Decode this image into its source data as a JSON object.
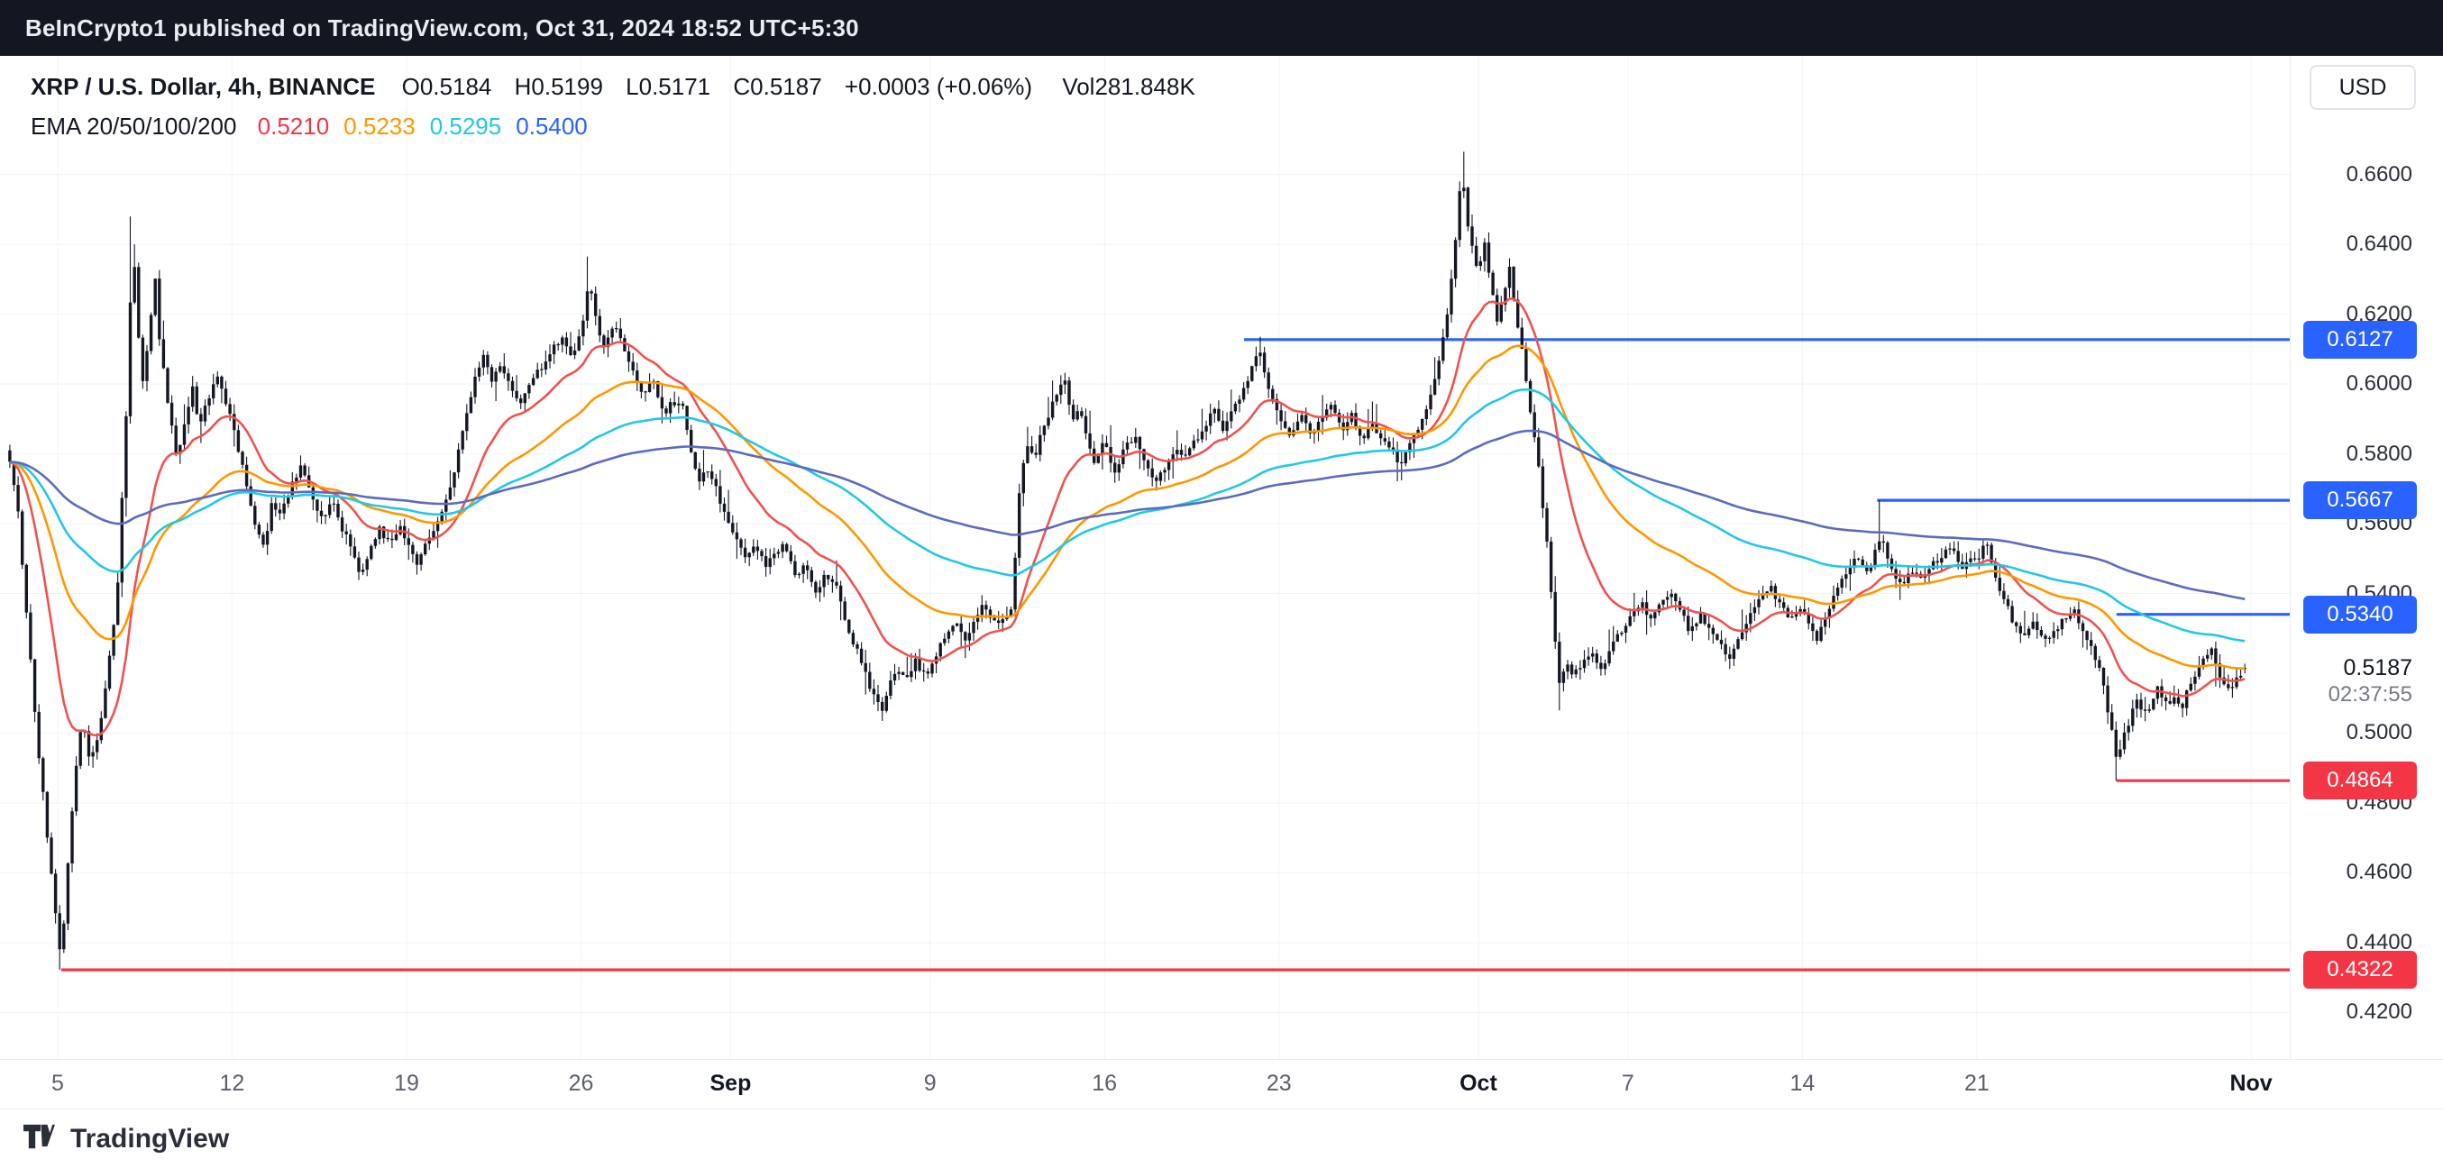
{
  "publish_bar": {
    "text": "BeInCrypto1 published on TradingView.com, Oct 31, 2024 18:52 UTC+5:30"
  },
  "header": {
    "title": "XRP / U.S. Dollar, 4h, BINANCE",
    "ohlc": {
      "open": "O0.5184",
      "high": "H0.5199",
      "low": "L0.5171",
      "close": "C0.5187",
      "change": "+0.0003 (+0.06%)",
      "volume": "Vol281.848K"
    },
    "ema": {
      "label": "EMA 20/50/100/200",
      "values": [
        {
          "text": "0.5210",
          "color": "#F23645"
        },
        {
          "text": "0.5233",
          "color": "#FF9800"
        },
        {
          "text": "0.5295",
          "color": "#22C8E5"
        },
        {
          "text": "0.5400",
          "color": "#2962FF"
        }
      ]
    }
  },
  "currency_button": "USD",
  "colors": {
    "accent_blue": "#2962FF",
    "accent_red": "#F23645",
    "topbar_bg": "#131722",
    "candle": "#131722"
  },
  "price_axis": {
    "ticks": [
      {
        "label": "0.6600",
        "price": 0.66
      },
      {
        "label": "0.6400",
        "price": 0.64
      },
      {
        "label": "0.6200",
        "price": 0.62
      },
      {
        "label": "0.6000",
        "price": 0.6
      },
      {
        "label": "0.5800",
        "price": 0.58
      },
      {
        "label": "0.5600",
        "price": 0.56
      },
      {
        "label": "0.5400",
        "price": 0.54
      },
      {
        "label": "0.5000",
        "price": 0.5
      },
      {
        "label": "0.4800",
        "price": 0.48
      },
      {
        "label": "0.4600",
        "price": 0.46
      },
      {
        "label": "0.4400",
        "price": 0.44
      },
      {
        "label": "0.4200",
        "price": 0.42
      }
    ],
    "current": {
      "label": "0.5187",
      "price": 0.5187,
      "countdown": "02:37:55"
    }
  },
  "time_axis": {
    "ticks": [
      {
        "label": "5",
        "t": 2
      },
      {
        "label": "12",
        "t": 9
      },
      {
        "label": "19",
        "t": 16
      },
      {
        "label": "26",
        "t": 23
      },
      {
        "label": "Sep",
        "t": 29,
        "bold": true
      },
      {
        "label": "9",
        "t": 37
      },
      {
        "label": "16",
        "t": 44
      },
      {
        "label": "23",
        "t": 51
      },
      {
        "label": "Oct",
        "t": 59,
        "bold": true
      },
      {
        "label": "7",
        "t": 65
      },
      {
        "label": "14",
        "t": 72
      },
      {
        "label": "21",
        "t": 79
      },
      {
        "label": "Nov",
        "t": 90,
        "bold": true
      }
    ]
  },
  "footer": {
    "brand": "TradingView"
  },
  "chart_data": {
    "type": "candlestick",
    "symbol": "XRP/USD",
    "interval": "4h",
    "exchange": "BINANCE",
    "title": "XRP / U.S. Dollar, 4h, BINANCE",
    "ylim": [
      0.4067,
      0.694
    ],
    "x_days_range": [
      0,
      89.8
    ],
    "x_axis_note": "t = days since Aug 3 2024; ticks at Aug 5..Nov 1",
    "grid": "faint",
    "candle_color": "#131722",
    "candles_per_day": 6,
    "noise": {
      "seed": 11,
      "body": 0.0022,
      "wick": 0.003
    },
    "last_candle": {
      "open": 0.5184,
      "high": 0.5199,
      "low": 0.5171,
      "close": 0.5187
    },
    "ema_overlays": [
      {
        "period": 20,
        "color": "#EF5350"
      },
      {
        "period": 50,
        "color": "#FF9800"
      },
      {
        "period": 100,
        "color": "#22C8E5"
      },
      {
        "period": 200,
        "color": "#5C6BC0"
      }
    ],
    "horizontal_lines": [
      {
        "label": "0.6127",
        "price": 0.6127,
        "t_start": 49.6,
        "color": "#2962FF"
      },
      {
        "label": "0.5667",
        "price": 0.5667,
        "t_start": 75.0,
        "color": "#2962FF"
      },
      {
        "label": "0.5340",
        "price": 0.534,
        "t_start": 84.6,
        "color": "#2962FF"
      },
      {
        "label": "0.4864",
        "price": 0.4864,
        "t_start": 84.6,
        "color": "#F23645"
      },
      {
        "label": "0.4322",
        "price": 0.4322,
        "t_start": 2.15,
        "color": "#F23645"
      }
    ],
    "anchors": [
      {
        "t": 2.15,
        "price": 0.4322,
        "kind": "low"
      },
      {
        "t": 5.0,
        "price": 0.648,
        "kind": "high"
      },
      {
        "t": 23.3,
        "price": 0.6365,
        "kind": "high"
      },
      {
        "t": 35.1,
        "price": 0.5035,
        "kind": "low"
      },
      {
        "t": 50.25,
        "price": 0.6127,
        "kind": "high"
      },
      {
        "t": 58.35,
        "price": 0.6665,
        "kind": "high"
      },
      {
        "t": 62.25,
        "price": 0.5065,
        "kind": "low"
      },
      {
        "t": 75.15,
        "price": 0.5667,
        "kind": "high"
      },
      {
        "t": 84.6,
        "price": 0.4864,
        "kind": "low"
      }
    ],
    "price_path": [
      [
        0,
        0.581
      ],
      [
        0.4,
        0.565
      ],
      [
        0.8,
        0.53
      ],
      [
        1.2,
        0.497
      ],
      [
        1.6,
        0.47
      ],
      [
        2.0,
        0.444
      ],
      [
        2.15,
        0.4335
      ],
      [
        2.4,
        0.462
      ],
      [
        2.7,
        0.488
      ],
      [
        3.0,
        0.505
      ],
      [
        3.3,
        0.492
      ],
      [
        3.6,
        0.498
      ],
      [
        4.0,
        0.517
      ],
      [
        4.4,
        0.54
      ],
      [
        4.8,
        0.598
      ],
      [
        5.0,
        0.643
      ],
      [
        5.2,
        0.618
      ],
      [
        5.4,
        0.6
      ],
      [
        5.7,
        0.616
      ],
      [
        5.9,
        0.6315
      ],
      [
        6.1,
        0.612
      ],
      [
        6.4,
        0.596
      ],
      [
        6.8,
        0.578
      ],
      [
        7.1,
        0.589
      ],
      [
        7.4,
        0.599
      ],
      [
        7.7,
        0.588
      ],
      [
        8.0,
        0.595
      ],
      [
        8.4,
        0.603
      ],
      [
        8.8,
        0.594
      ],
      [
        9.2,
        0.583
      ],
      [
        9.6,
        0.57
      ],
      [
        10.0,
        0.558
      ],
      [
        10.3,
        0.552
      ],
      [
        10.6,
        0.566
      ],
      [
        11.0,
        0.563
      ],
      [
        11.4,
        0.572
      ],
      [
        11.8,
        0.577
      ],
      [
        12.2,
        0.569
      ],
      [
        12.6,
        0.561
      ],
      [
        13.0,
        0.567
      ],
      [
        13.4,
        0.559
      ],
      [
        13.8,
        0.553
      ],
      [
        14.1,
        0.546
      ],
      [
        14.5,
        0.551
      ],
      [
        14.9,
        0.559
      ],
      [
        15.3,
        0.554
      ],
      [
        15.7,
        0.559
      ],
      [
        16.0,
        0.556
      ],
      [
        16.4,
        0.549
      ],
      [
        16.8,
        0.554
      ],
      [
        17.2,
        0.56
      ],
      [
        17.6,
        0.567
      ],
      [
        18.0,
        0.578
      ],
      [
        18.4,
        0.592
      ],
      [
        18.8,
        0.603
      ],
      [
        19.1,
        0.609
      ],
      [
        19.4,
        0.601
      ],
      [
        19.8,
        0.606
      ],
      [
        20.2,
        0.598
      ],
      [
        20.6,
        0.594
      ],
      [
        21.0,
        0.601
      ],
      [
        21.4,
        0.605
      ],
      [
        21.8,
        0.609
      ],
      [
        22.2,
        0.613
      ],
      [
        22.6,
        0.607
      ],
      [
        23.0,
        0.615
      ],
      [
        23.3,
        0.629
      ],
      [
        23.6,
        0.619
      ],
      [
        23.9,
        0.611
      ],
      [
        24.3,
        0.617
      ],
      [
        24.7,
        0.611
      ],
      [
        25.1,
        0.604
      ],
      [
        25.5,
        0.597
      ],
      [
        25.9,
        0.602
      ],
      [
        26.3,
        0.591
      ],
      [
        26.7,
        0.595
      ],
      [
        27.1,
        0.593
      ],
      [
        27.4,
        0.582
      ],
      [
        27.7,
        0.572
      ],
      [
        28.0,
        0.577
      ],
      [
        28.4,
        0.57
      ],
      [
        28.8,
        0.562
      ],
      [
        29.2,
        0.556
      ],
      [
        29.6,
        0.549
      ],
      [
        30.0,
        0.554
      ],
      [
        30.4,
        0.547
      ],
      [
        30.8,
        0.552
      ],
      [
        31.2,
        0.554
      ],
      [
        31.6,
        0.544
      ],
      [
        32.0,
        0.549
      ],
      [
        32.4,
        0.54
      ],
      [
        32.8,
        0.545
      ],
      [
        33.2,
        0.543
      ],
      [
        33.6,
        0.532
      ],
      [
        34.0,
        0.525
      ],
      [
        34.4,
        0.517
      ],
      [
        34.8,
        0.51
      ],
      [
        35.1,
        0.5065
      ],
      [
        35.4,
        0.514
      ],
      [
        35.7,
        0.519
      ],
      [
        36.0,
        0.515
      ],
      [
        36.4,
        0.521
      ],
      [
        36.8,
        0.516
      ],
      [
        37.2,
        0.522
      ],
      [
        37.6,
        0.527
      ],
      [
        38.0,
        0.532
      ],
      [
        38.4,
        0.527
      ],
      [
        38.8,
        0.533
      ],
      [
        39.2,
        0.537
      ],
      [
        39.6,
        0.531
      ],
      [
        40.0,
        0.534
      ],
      [
        40.3,
        0.536
      ],
      [
        40.6,
        0.57
      ],
      [
        40.9,
        0.583
      ],
      [
        41.2,
        0.577
      ],
      [
        41.5,
        0.588
      ],
      [
        41.8,
        0.592
      ],
      [
        42.1,
        0.598
      ],
      [
        42.4,
        0.6015
      ],
      [
        42.7,
        0.59
      ],
      [
        43.0,
        0.593
      ],
      [
        43.3,
        0.585
      ],
      [
        43.6,
        0.578
      ],
      [
        44.0,
        0.583
      ],
      [
        44.4,
        0.575
      ],
      [
        44.8,
        0.581
      ],
      [
        45.2,
        0.585
      ],
      [
        45.6,
        0.578
      ],
      [
        46.0,
        0.571
      ],
      [
        46.4,
        0.576
      ],
      [
        46.8,
        0.581
      ],
      [
        47.2,
        0.578
      ],
      [
        47.6,
        0.583
      ],
      [
        48.0,
        0.588
      ],
      [
        48.4,
        0.592
      ],
      [
        48.8,
        0.587
      ],
      [
        49.2,
        0.593
      ],
      [
        49.6,
        0.599
      ],
      [
        50.0,
        0.606
      ],
      [
        50.25,
        0.61
      ],
      [
        50.5,
        0.601
      ],
      [
        50.8,
        0.594
      ],
      [
        51.1,
        0.589
      ],
      [
        51.5,
        0.585
      ],
      [
        51.9,
        0.591
      ],
      [
        52.3,
        0.586
      ],
      [
        52.7,
        0.59
      ],
      [
        53.1,
        0.594
      ],
      [
        53.5,
        0.587
      ],
      [
        53.9,
        0.591
      ],
      [
        54.3,
        0.584
      ],
      [
        54.7,
        0.589
      ],
      [
        55.1,
        0.585
      ],
      [
        55.5,
        0.581
      ],
      [
        55.9,
        0.577
      ],
      [
        56.3,
        0.583
      ],
      [
        56.7,
        0.589
      ],
      [
        57.0,
        0.594
      ],
      [
        57.4,
        0.606
      ],
      [
        57.7,
        0.617
      ],
      [
        58.0,
        0.634
      ],
      [
        58.2,
        0.652
      ],
      [
        58.35,
        0.662
      ],
      [
        58.5,
        0.649
      ],
      [
        58.7,
        0.641
      ],
      [
        59.0,
        0.632
      ],
      [
        59.25,
        0.641
      ],
      [
        59.5,
        0.628
      ],
      [
        59.75,
        0.618
      ],
      [
        60.0,
        0.626
      ],
      [
        60.25,
        0.633
      ],
      [
        60.5,
        0.621
      ],
      [
        60.8,
        0.607
      ],
      [
        61.1,
        0.592
      ],
      [
        61.4,
        0.577
      ],
      [
        61.7,
        0.558
      ],
      [
        62.0,
        0.534
      ],
      [
        62.25,
        0.5135
      ],
      [
        62.5,
        0.521
      ],
      [
        62.8,
        0.516
      ],
      [
        63.1,
        0.519
      ],
      [
        63.5,
        0.524
      ],
      [
        63.9,
        0.518
      ],
      [
        64.3,
        0.524
      ],
      [
        64.7,
        0.529
      ],
      [
        65.1,
        0.533
      ],
      [
        65.5,
        0.538
      ],
      [
        65.9,
        0.532
      ],
      [
        66.3,
        0.537
      ],
      [
        66.7,
        0.541
      ],
      [
        67.1,
        0.535
      ],
      [
        67.5,
        0.529
      ],
      [
        67.9,
        0.534
      ],
      [
        68.3,
        0.529
      ],
      [
        68.7,
        0.525
      ],
      [
        69.1,
        0.521
      ],
      [
        69.5,
        0.528
      ],
      [
        69.9,
        0.534
      ],
      [
        70.3,
        0.539
      ],
      [
        70.7,
        0.542
      ],
      [
        71.1,
        0.537
      ],
      [
        71.5,
        0.532
      ],
      [
        71.9,
        0.536
      ],
      [
        72.3,
        0.531
      ],
      [
        72.6,
        0.527
      ],
      [
        73.0,
        0.534
      ],
      [
        73.4,
        0.541
      ],
      [
        73.8,
        0.547
      ],
      [
        74.2,
        0.551
      ],
      [
        74.6,
        0.546
      ],
      [
        75.0,
        0.553
      ],
      [
        75.15,
        0.558
      ],
      [
        75.4,
        0.551
      ],
      [
        75.7,
        0.546
      ],
      [
        76.0,
        0.542
      ],
      [
        76.4,
        0.547
      ],
      [
        76.8,
        0.543
      ],
      [
        77.2,
        0.548
      ],
      [
        77.6,
        0.551
      ],
      [
        78.0,
        0.553
      ],
      [
        78.4,
        0.547
      ],
      [
        78.8,
        0.551
      ],
      [
        79.1,
        0.549
      ],
      [
        79.35,
        0.556
      ],
      [
        79.6,
        0.549
      ],
      [
        79.9,
        0.542
      ],
      [
        80.2,
        0.537
      ],
      [
        80.5,
        0.531
      ],
      [
        80.9,
        0.527
      ],
      [
        81.3,
        0.532
      ],
      [
        81.7,
        0.526
      ],
      [
        82.1,
        0.529
      ],
      [
        82.5,
        0.533
      ],
      [
        82.9,
        0.535
      ],
      [
        83.3,
        0.529
      ],
      [
        83.7,
        0.522
      ],
      [
        84.0,
        0.516
      ],
      [
        84.3,
        0.504
      ],
      [
        84.6,
        0.4935
      ],
      [
        84.8,
        0.497
      ],
      [
        85.1,
        0.503
      ],
      [
        85.4,
        0.509
      ],
      [
        85.7,
        0.505
      ],
      [
        86.0,
        0.509
      ],
      [
        86.3,
        0.513
      ],
      [
        86.6,
        0.508
      ],
      [
        86.9,
        0.511
      ],
      [
        87.2,
        0.507
      ],
      [
        87.5,
        0.513
      ],
      [
        87.8,
        0.518
      ],
      [
        88.1,
        0.522
      ],
      [
        88.4,
        0.5245
      ],
      [
        88.6,
        0.519
      ],
      [
        88.8,
        0.515
      ],
      [
        89.1,
        0.512
      ],
      [
        89.4,
        0.5165
      ],
      [
        89.8,
        0.5187
      ]
    ]
  }
}
